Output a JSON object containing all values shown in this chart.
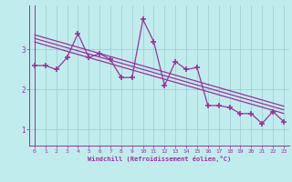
{
  "xlabel": "Windchill (Refroidissement éolien,°C)",
  "bg_color": "#c0ecee",
  "line_color": "#993399",
  "grid_color": "#99cccc",
  "x_data": [
    0,
    1,
    2,
    3,
    4,
    5,
    6,
    7,
    8,
    9,
    10,
    11,
    12,
    13,
    14,
    15,
    16,
    17,
    18,
    19,
    20,
    21,
    22,
    23
  ],
  "y_data": [
    2.6,
    2.6,
    2.5,
    2.8,
    3.4,
    2.8,
    2.9,
    2.75,
    2.3,
    2.3,
    3.75,
    3.2,
    2.1,
    2.7,
    2.5,
    2.55,
    1.6,
    1.6,
    1.55,
    1.4,
    1.4,
    1.15,
    1.45,
    1.2
  ],
  "xlim": [
    -0.5,
    23.5
  ],
  "ylim": [
    0.6,
    4.1
  ],
  "yticks": [
    1,
    2,
    3
  ],
  "xticks": [
    0,
    1,
    2,
    3,
    4,
    5,
    6,
    7,
    8,
    9,
    10,
    11,
    12,
    13,
    14,
    15,
    16,
    17,
    18,
    19,
    20,
    21,
    22,
    23
  ],
  "trend_offsets": [
    0.18,
    0.09,
    0.0
  ],
  "trend_x": [
    0,
    23
  ]
}
